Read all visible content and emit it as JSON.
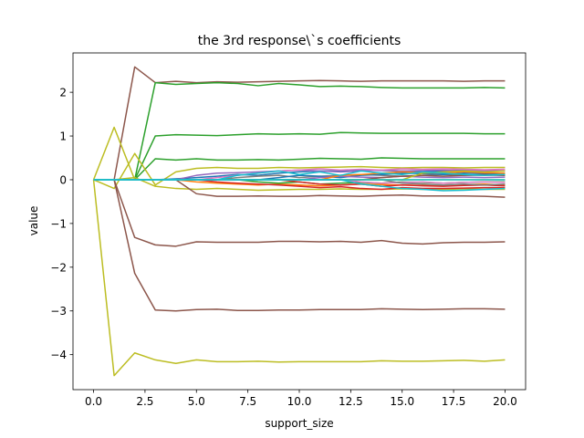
{
  "chart_data": {
    "type": "line",
    "title": "the 3rd response\\`s coefficients",
    "xlabel": "support_size",
    "ylabel": "value",
    "xlim": [
      -1.0,
      21.0
    ],
    "ylim": [
      -4.8,
      2.9
    ],
    "x_ticks": [
      0.0,
      2.5,
      5.0,
      7.5,
      10.0,
      12.5,
      15.0,
      17.5,
      20.0
    ],
    "x_tick_labels": [
      "0.0",
      "2.5",
      "5.0",
      "7.5",
      "10.0",
      "12.5",
      "15.0",
      "17.5",
      "20.0"
    ],
    "y_ticks": [
      -4,
      -3,
      -2,
      -1,
      0,
      1,
      2
    ],
    "y_tick_labels": [
      "−4",
      "−3",
      "−2",
      "−1",
      "0",
      "1",
      "2"
    ],
    "grid": false,
    "legend": "none",
    "x": [
      0,
      1,
      2,
      3,
      4,
      5,
      6,
      7,
      8,
      9,
      10,
      11,
      12,
      13,
      14,
      15,
      16,
      17,
      18,
      19,
      20
    ],
    "series": [
      {
        "color": "#8c564b",
        "values": [
          0,
          0,
          2.58,
          2.22,
          2.25,
          2.22,
          2.24,
          2.23,
          2.24,
          2.25,
          2.26,
          2.27,
          2.26,
          2.25,
          2.26,
          2.26,
          2.26,
          2.26,
          2.25,
          2.26,
          2.26
        ]
      },
      {
        "color": "#2ca02c",
        "values": [
          0,
          0,
          0,
          2.22,
          2.18,
          2.2,
          2.22,
          2.2,
          2.15,
          2.2,
          2.17,
          2.13,
          2.14,
          2.13,
          2.11,
          2.1,
          2.1,
          2.1,
          2.1,
          2.11,
          2.1
        ]
      },
      {
        "color": "#2ca02c",
        "values": [
          0,
          0,
          0,
          1.0,
          1.03,
          1.02,
          1.01,
          1.03,
          1.05,
          1.04,
          1.05,
          1.04,
          1.08,
          1.07,
          1.06,
          1.06,
          1.06,
          1.06,
          1.06,
          1.05,
          1.05
        ]
      },
      {
        "color": "#2ca02c",
        "values": [
          0,
          0,
          0,
          0.48,
          0.45,
          0.48,
          0.45,
          0.45,
          0.46,
          0.45,
          0.47,
          0.49,
          0.48,
          0.47,
          0.5,
          0.49,
          0.48,
          0.48,
          0.48,
          0.48,
          0.48
        ]
      },
      {
        "color": "#bcbd22",
        "values": [
          0,
          1.2,
          0,
          0,
          0,
          0,
          0,
          0,
          0,
          0,
          0,
          0,
          0,
          0,
          0,
          0,
          0,
          0,
          0,
          0,
          0
        ]
      },
      {
        "color": "#bcbd22",
        "values": [
          0,
          -0.2,
          0.6,
          -0.12,
          0.18,
          0.26,
          0.28,
          0.26,
          0.26,
          0.28,
          0.27,
          0.28,
          0.29,
          0.3,
          0.28,
          0.27,
          0.28,
          0.28,
          0.27,
          0.28,
          0.28
        ]
      },
      {
        "color": "#bcbd22",
        "values": [
          0,
          0,
          0.05,
          -0.15,
          -0.2,
          -0.22,
          -0.2,
          -0.22,
          -0.24,
          -0.23,
          -0.22,
          -0.22,
          -0.21,
          -0.22,
          -0.22,
          -0.21,
          -0.22,
          -0.22,
          -0.21,
          -0.22,
          -0.22
        ]
      },
      {
        "color": "#bcbd22",
        "values": [
          0,
          -4.48,
          -3.96,
          -4.12,
          -4.2,
          -4.12,
          -4.16,
          -4.16,
          -4.15,
          -4.17,
          -4.16,
          -4.16,
          -4.16,
          -4.16,
          -4.14,
          -4.15,
          -4.15,
          -4.14,
          -4.13,
          -4.15,
          -4.12
        ]
      },
      {
        "color": "#8c564b",
        "values": [
          0,
          0,
          -1.32,
          -1.49,
          -1.52,
          -1.42,
          -1.43,
          -1.43,
          -1.43,
          -1.41,
          -1.41,
          -1.42,
          -1.41,
          -1.43,
          -1.39,
          -1.45,
          -1.47,
          -1.44,
          -1.43,
          -1.43,
          -1.42
        ]
      },
      {
        "color": "#8c564b",
        "values": [
          0,
          0,
          -2.14,
          -2.98,
          -3.0,
          -2.97,
          -2.96,
          -2.99,
          -2.99,
          -2.98,
          -2.98,
          -2.97,
          -2.97,
          -2.97,
          -2.95,
          -2.96,
          -2.97,
          -2.96,
          -2.95,
          -2.95,
          -2.96
        ]
      },
      {
        "color": "#8c564b",
        "values": [
          0,
          0,
          0,
          0,
          0,
          -0.32,
          -0.38,
          -0.38,
          -0.37,
          -0.38,
          -0.38,
          -0.36,
          -0.37,
          -0.38,
          -0.36,
          -0.35,
          -0.37,
          -0.37,
          -0.37,
          -0.38,
          -0.4
        ]
      },
      {
        "color": "#1f77b4",
        "values": [
          0,
          0,
          0,
          0,
          0.02,
          0.05,
          0.08,
          0.12,
          0.1,
          0.15,
          0.18,
          0.2,
          0.2,
          0.22,
          0.21,
          0.2,
          0.18,
          0.2,
          0.22,
          0.21,
          0.2
        ]
      },
      {
        "color": "#ff7f0e",
        "values": [
          0,
          0,
          0,
          0,
          0,
          -0.05,
          -0.08,
          -0.1,
          -0.12,
          -0.1,
          -0.12,
          -0.14,
          -0.12,
          -0.1,
          -0.11,
          -0.12,
          -0.13,
          -0.12,
          -0.11,
          -0.1,
          -0.12
        ]
      },
      {
        "color": "#d62728",
        "values": [
          0,
          0,
          0,
          0,
          0,
          0,
          -0.05,
          -0.08,
          -0.1,
          -0.12,
          -0.15,
          -0.18,
          -0.16,
          -0.2,
          -0.22,
          -0.18,
          -0.2,
          -0.2,
          -0.19,
          -0.18,
          -0.18
        ]
      },
      {
        "color": "#9467bd",
        "values": [
          0,
          0,
          0,
          0,
          0,
          0.1,
          0.15,
          0.16,
          0.18,
          0.2,
          0.22,
          0.2,
          0.18,
          0.2,
          0.22,
          0.2,
          0.21,
          0.22,
          0.2,
          0.21,
          0.2
        ]
      },
      {
        "color": "#e377c2",
        "values": [
          0,
          0,
          0,
          0,
          0,
          0,
          0.05,
          0.1,
          0.15,
          0.2,
          0.22,
          0.25,
          0.22,
          0.24,
          0.22,
          0.25,
          0.24,
          0.25,
          0.24,
          0.23,
          0.24
        ]
      },
      {
        "color": "#7f7f7f",
        "values": [
          0,
          0,
          0,
          0,
          0,
          0,
          0,
          0.05,
          0.08,
          0.1,
          0.05,
          0.08,
          0.1,
          0.12,
          0.1,
          0.08,
          0.1,
          0.12,
          0.1,
          0.1,
          0.1
        ]
      },
      {
        "color": "#2ca02c",
        "values": [
          0,
          0,
          0,
          0,
          0,
          0,
          0,
          0,
          -0.05,
          -0.08,
          -0.05,
          -0.1,
          -0.08,
          -0.06,
          -0.08,
          -0.05,
          -0.06,
          -0.08,
          -0.06,
          -0.05,
          -0.05
        ]
      },
      {
        "color": "#1f77b4",
        "values": [
          0,
          0,
          0,
          0,
          0,
          0,
          0,
          0,
          0,
          0.05,
          0.1,
          0.08,
          0.05,
          0.1,
          0.12,
          0.15,
          0.14,
          0.12,
          0.15,
          0.14,
          0.12
        ]
      },
      {
        "color": "#d62728",
        "values": [
          0,
          0,
          0,
          0,
          0,
          0,
          0,
          0,
          0,
          0,
          -0.05,
          -0.1,
          -0.12,
          -0.1,
          -0.15,
          -0.12,
          -0.14,
          -0.15,
          -0.13,
          -0.12,
          -0.14
        ]
      },
      {
        "color": "#9467bd",
        "values": [
          0,
          0,
          0,
          0,
          0,
          0,
          0,
          0,
          0,
          0,
          0,
          0.05,
          0.08,
          0.06,
          0.05,
          0.08,
          0.06,
          0.05,
          0.06,
          0.05,
          0.06
        ]
      },
      {
        "color": "#ff7f0e",
        "values": [
          0,
          0,
          0,
          0,
          0,
          0,
          0,
          0,
          0,
          0,
          0,
          0,
          0.1,
          0.12,
          0.15,
          0.18,
          0.16,
          0.15,
          0.18,
          0.16,
          0.15
        ]
      },
      {
        "color": "#e377c2",
        "values": [
          0,
          0,
          0,
          0,
          0,
          0,
          0,
          0,
          0,
          0,
          0,
          0,
          0,
          -0.05,
          -0.08,
          -0.06,
          -0.05,
          -0.08,
          -0.06,
          -0.05,
          -0.06
        ]
      },
      {
        "color": "#8c564b",
        "values": [
          0,
          0,
          0,
          0,
          0,
          0,
          0,
          0,
          0,
          0,
          0,
          0,
          0,
          0,
          0.05,
          0.08,
          0.1,
          0.08,
          0.1,
          0.12,
          0.1
        ]
      },
      {
        "color": "#7f7f7f",
        "values": [
          0,
          0,
          0,
          0,
          0,
          0,
          0,
          0,
          0,
          0,
          0,
          0,
          0,
          0,
          0,
          -0.08,
          -0.1,
          -0.12,
          -0.1,
          -0.12,
          -0.1
        ]
      },
      {
        "color": "#bcbd22",
        "values": [
          0,
          0,
          0,
          0,
          0,
          0,
          0,
          0,
          0,
          0,
          0,
          0,
          0,
          0,
          0,
          0,
          0.15,
          0.18,
          0.2,
          0.18,
          0.2
        ]
      },
      {
        "color": "#17becf",
        "values": [
          0,
          0,
          0,
          0,
          0,
          0,
          0,
          0.1,
          0.15,
          0.2,
          0.12,
          0.18,
          0.1,
          0.2,
          0.15,
          0.12,
          0.18,
          0.15,
          0.12,
          0.1,
          0.12
        ]
      },
      {
        "color": "#17becf",
        "values": [
          0,
          0,
          0,
          0,
          0,
          0,
          0,
          0,
          0,
          0,
          0,
          0,
          0,
          -0.1,
          -0.15,
          -0.2,
          -0.22,
          -0.25,
          -0.24,
          -0.22,
          -0.2
        ]
      },
      {
        "color": "#17becf",
        "values": [
          0,
          0,
          0,
          0,
          0,
          0,
          0,
          0,
          0,
          0,
          0,
          0,
          0,
          0,
          0,
          0,
          0,
          0,
          0,
          0,
          0
        ]
      }
    ]
  }
}
